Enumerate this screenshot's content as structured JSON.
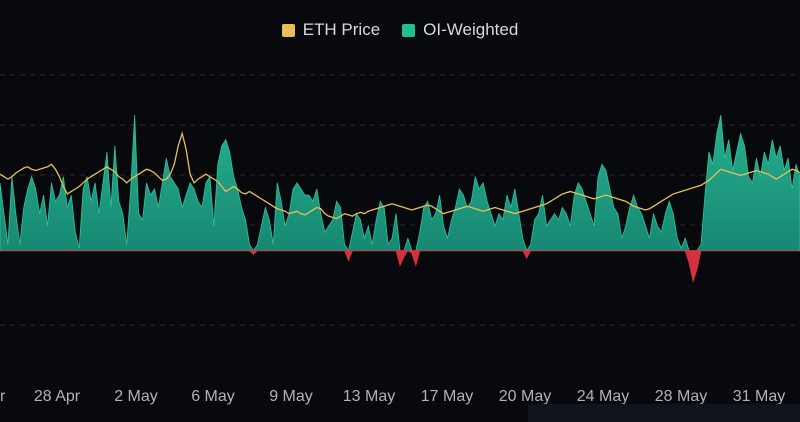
{
  "legend": {
    "eth_price_label": "ETH Price",
    "oi_weighted_label": "OI-Weighted"
  },
  "colors": {
    "background": "#07090d",
    "eth_price": "#e9bf57",
    "oi_positive": "#1f9e83",
    "oi_negative": "#d6303f",
    "grid": "#2a2e36"
  },
  "chart_data": {
    "type": "area",
    "title": "",
    "xlabel": "",
    "ylabel": "",
    "grid": "horizontal dashed",
    "legend_position": "top-center",
    "x_tick_labels": [
      "r",
      "28 Apr",
      "2 May",
      "6 May",
      "9 May",
      "13 May",
      "17 May",
      "20 May",
      "24 May",
      "28 May",
      "31 May"
    ],
    "ylim": [
      -1,
      1.4
    ],
    "series": [
      {
        "name": "OI-Weighted",
        "values": [
          0.55,
          0.3,
          0.05,
          0.6,
          0.3,
          0.05,
          0.35,
          0.5,
          0.6,
          0.5,
          0.3,
          0.45,
          0.2,
          0.55,
          0.4,
          0.45,
          0.6,
          0.35,
          0.45,
          0.15,
          0.02,
          0.5,
          0.6,
          0.4,
          0.55,
          0.3,
          0.55,
          0.8,
          0.35,
          0.85,
          0.4,
          0.3,
          0.05,
          0.5,
          1.1,
          0.3,
          0.25,
          0.55,
          0.45,
          0.5,
          0.35,
          0.55,
          0.75,
          0.6,
          0.55,
          0.5,
          0.35,
          0.45,
          0.55,
          0.5,
          0.4,
          0.35,
          0.55,
          0.6,
          0.2,
          0.7,
          0.85,
          0.9,
          0.8,
          0.6,
          0.5,
          0.35,
          0.25,
          0.05,
          -0.03,
          0.05,
          0.2,
          0.35,
          0.25,
          0.05,
          0.55,
          0.4,
          0.2,
          0.3,
          0.5,
          0.55,
          0.5,
          0.45,
          0.45,
          0.4,
          0.5,
          0.3,
          0.15,
          0.2,
          0.25,
          0.4,
          0.35,
          0.05,
          -0.08,
          0.15,
          0.3,
          0.25,
          0.1,
          0.2,
          0.05,
          0.25,
          0.4,
          0.35,
          0.05,
          0.1,
          0.3,
          -0.12,
          -0.05,
          0.1,
          -0.02,
          -0.12,
          0.15,
          0.35,
          0.4,
          0.25,
          0.3,
          0.45,
          0.2,
          0.1,
          0.25,
          0.35,
          0.5,
          0.45,
          0.35,
          0.4,
          0.6,
          0.5,
          0.55,
          0.4,
          0.3,
          0.2,
          0.3,
          0.25,
          0.45,
          0.35,
          0.5,
          0.3,
          0.1,
          -0.06,
          0.05,
          0.25,
          0.3,
          0.45,
          0.2,
          0.25,
          0.3,
          0.25,
          0.35,
          0.3,
          0.2,
          0.45,
          0.55,
          0.5,
          0.4,
          0.3,
          0.2,
          0.6,
          0.7,
          0.65,
          0.5,
          0.35,
          0.3,
          0.1,
          0.2,
          0.35,
          0.45,
          0.35,
          0.3,
          0.2,
          0.1,
          0.3,
          0.2,
          0.15,
          0.3,
          0.4,
          0.3,
          0.1,
          0.02,
          0.1,
          -0.1,
          -0.25,
          -0.15,
          0.05,
          0.45,
          0.8,
          0.7,
          0.95,
          1.1,
          0.75,
          0.9,
          0.65,
          0.8,
          0.95,
          0.85,
          0.6,
          0.55,
          0.75,
          0.6,
          0.8,
          0.7,
          0.9,
          0.75,
          0.85,
          0.65,
          0.75,
          0.5,
          0.7,
          0.6
        ]
      },
      {
        "name": "ETH Price",
        "values": [
          0.62,
          0.6,
          0.58,
          0.6,
          0.63,
          0.65,
          0.67,
          0.68,
          0.66,
          0.65,
          0.66,
          0.67,
          0.68,
          0.7,
          0.66,
          0.6,
          0.52,
          0.46,
          0.48,
          0.5,
          0.52,
          0.55,
          0.58,
          0.6,
          0.62,
          0.64,
          0.66,
          0.68,
          0.66,
          0.64,
          0.6,
          0.58,
          0.55,
          0.58,
          0.6,
          0.62,
          0.64,
          0.66,
          0.65,
          0.63,
          0.6,
          0.57,
          0.58,
          0.62,
          0.7,
          0.85,
          0.95,
          0.82,
          0.62,
          0.55,
          0.58,
          0.6,
          0.62,
          0.6,
          0.58,
          0.56,
          0.52,
          0.48,
          0.5,
          0.52,
          0.5,
          0.47,
          0.46,
          0.48,
          0.46,
          0.44,
          0.42,
          0.4,
          0.38,
          0.36,
          0.34,
          0.33,
          0.32,
          0.3,
          0.31,
          0.32,
          0.3,
          0.29,
          0.31,
          0.33,
          0.35,
          0.34,
          0.3,
          0.28,
          0.27,
          0.26,
          0.28,
          0.3,
          0.29,
          0.28,
          0.3,
          0.31,
          0.3,
          0.32,
          0.33,
          0.34,
          0.35,
          0.36,
          0.37,
          0.38,
          0.37,
          0.36,
          0.35,
          0.34,
          0.33,
          0.34,
          0.35,
          0.36,
          0.37,
          0.36,
          0.34,
          0.32,
          0.3,
          0.31,
          0.32,
          0.33,
          0.34,
          0.35,
          0.36,
          0.35,
          0.34,
          0.33,
          0.32,
          0.33,
          0.34,
          0.35,
          0.34,
          0.33,
          0.32,
          0.31,
          0.3,
          0.31,
          0.32,
          0.33,
          0.34,
          0.35,
          0.36,
          0.37,
          0.38,
          0.4,
          0.42,
          0.44,
          0.46,
          0.47,
          0.48,
          0.47,
          0.46,
          0.45,
          0.44,
          0.43,
          0.42,
          0.43,
          0.44,
          0.45,
          0.44,
          0.43,
          0.42,
          0.41,
          0.4,
          0.38,
          0.36,
          0.35,
          0.34,
          0.33,
          0.34,
          0.36,
          0.38,
          0.4,
          0.42,
          0.44,
          0.46,
          0.47,
          0.48,
          0.49,
          0.5,
          0.51,
          0.52,
          0.53,
          0.55,
          0.57,
          0.6,
          0.63,
          0.66,
          0.65,
          0.64,
          0.63,
          0.62,
          0.61,
          0.62,
          0.63,
          0.64,
          0.65,
          0.64,
          0.63,
          0.62,
          0.6,
          0.58,
          0.6,
          0.62,
          0.64,
          0.66,
          0.65,
          0.63,
          0.62,
          0.61,
          0.62
        ]
      }
    ]
  }
}
